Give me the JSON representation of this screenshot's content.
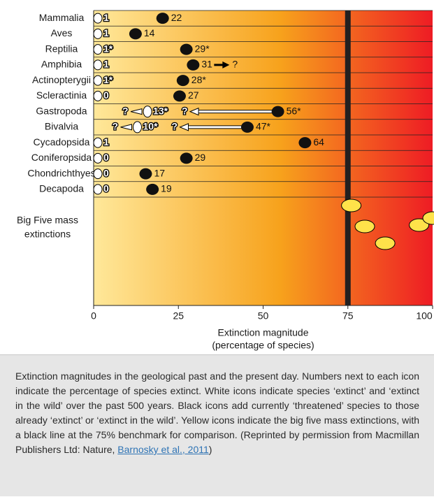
{
  "chart_data": {
    "type": "scatter",
    "description_note": "",
    "rows": [
      {
        "label": "Mammalia",
        "extinct": "1",
        "threatened": "22"
      },
      {
        "label": "Aves",
        "extinct": "1",
        "threatened": "14"
      },
      {
        "label": "Reptilia",
        "extinct": "1*",
        "threatened": "29*"
      },
      {
        "label": "Amphibia",
        "extinct": "1",
        "threatened": "31",
        "threatened_suffix": "?"
      },
      {
        "label": "Actinopterygii",
        "extinct": "1*",
        "threatened": "28*"
      },
      {
        "label": "Scleractinia",
        "extinct": "0",
        "threatened": "27"
      },
      {
        "label": "Gastropoda",
        "extinct": "13*",
        "extinct_prefix": "?",
        "threatened": "56*",
        "threatened_prefix": "?"
      },
      {
        "label": "Bivalvia",
        "extinct": "10*",
        "extinct_prefix": "?",
        "threatened": "47*",
        "threatened_prefix": "?"
      },
      {
        "label": "Cycadopsida",
        "extinct": "1",
        "threatened": "64"
      },
      {
        "label": "Coniferopsida",
        "extinct": "0",
        "threatened": "29"
      },
      {
        "label": "Chondrichthyes",
        "extinct": "0",
        "threatened": "17"
      },
      {
        "label": "Decapoda",
        "extinct": "0",
        "threatened": "19"
      }
    ],
    "extinct_x": [
      1,
      1,
      1,
      1,
      1,
      0,
      13,
      10,
      1,
      0,
      0,
      0
    ],
    "threatened_x": [
      22,
      14,
      29,
      31,
      28,
      27,
      56,
      47,
      64,
      29,
      17,
      19
    ],
    "big_five": {
      "label_line1": "Big Five mass",
      "label_line2": "extinctions",
      "values": [
        76,
        80,
        86,
        96,
        100
      ]
    },
    "benchmark": 75,
    "xlim": [
      0,
      100
    ],
    "xticks": [
      "0",
      "25",
      "50",
      "75",
      "100"
    ],
    "xlabel_line1": "Extinction magnitude",
    "xlabel_line2": "(percentage of species)",
    "colors": {
      "start": "#ffe89a",
      "mid": "#f7a21c",
      "end": "#ee1c24",
      "benchmark": "#231f20"
    }
  },
  "caption": {
    "text": "Extinction magnitudes in the geological past and the present day. Numbers next to each icon indicate the percentage of species extinct. White icons indicate species ‘extinct’ and ‘extinct in the wild’ over the past 500 years. Black icons add currently ‘threatened’ species to those already ‘extinct’ or ‘extinct in the wild’. Yellow icons indicate the big five mass extinctions, with a black line at the 75% benchmark for comparison. (Reprinted by permission from Macmillan Publishers Ltd: Nature, ",
    "link": "Barnosky et al., 2011",
    "close": ")"
  }
}
